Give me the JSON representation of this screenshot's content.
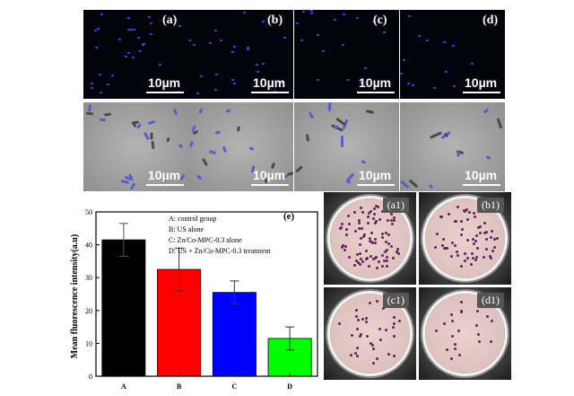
{
  "micrographs": {
    "labels": [
      "(a)",
      "(b)",
      "(c)",
      "(d)"
    ],
    "scale_text": "10µm"
  },
  "plates": {
    "labels": [
      "(a1)",
      "(b1)",
      "(c1)",
      "(d1)"
    ]
  },
  "colors": {
    "A": "#000000",
    "B": "#ff0000",
    "C": "#0000ff",
    "D": "#00ff00",
    "fluorescence_dot": "#3a4cff",
    "colony": "#6a1f5a",
    "agar": "#e9d2cf"
  },
  "chart_data": {
    "type": "bar",
    "panel_label": "(e)",
    "categories": [
      "A",
      "B",
      "C",
      "D"
    ],
    "values": [
      41.5,
      32.5,
      25.5,
      11.5
    ],
    "errors": [
      5,
      6.5,
      3.5,
      3.5
    ],
    "ylabel": "Mean fluorescence intensity(a.u)",
    "xlabel": "",
    "ylim": [
      0,
      50
    ],
    "yticks": [
      0,
      10,
      20,
      30,
      40,
      50
    ],
    "legend": [
      "A: control group",
      "B: US alone",
      "C: Zn/Co-MPC-0.3  alone",
      "D: US + Zn/Co-MPC-0.3 treatment"
    ],
    "legend_position": "top-right",
    "grid": false
  }
}
